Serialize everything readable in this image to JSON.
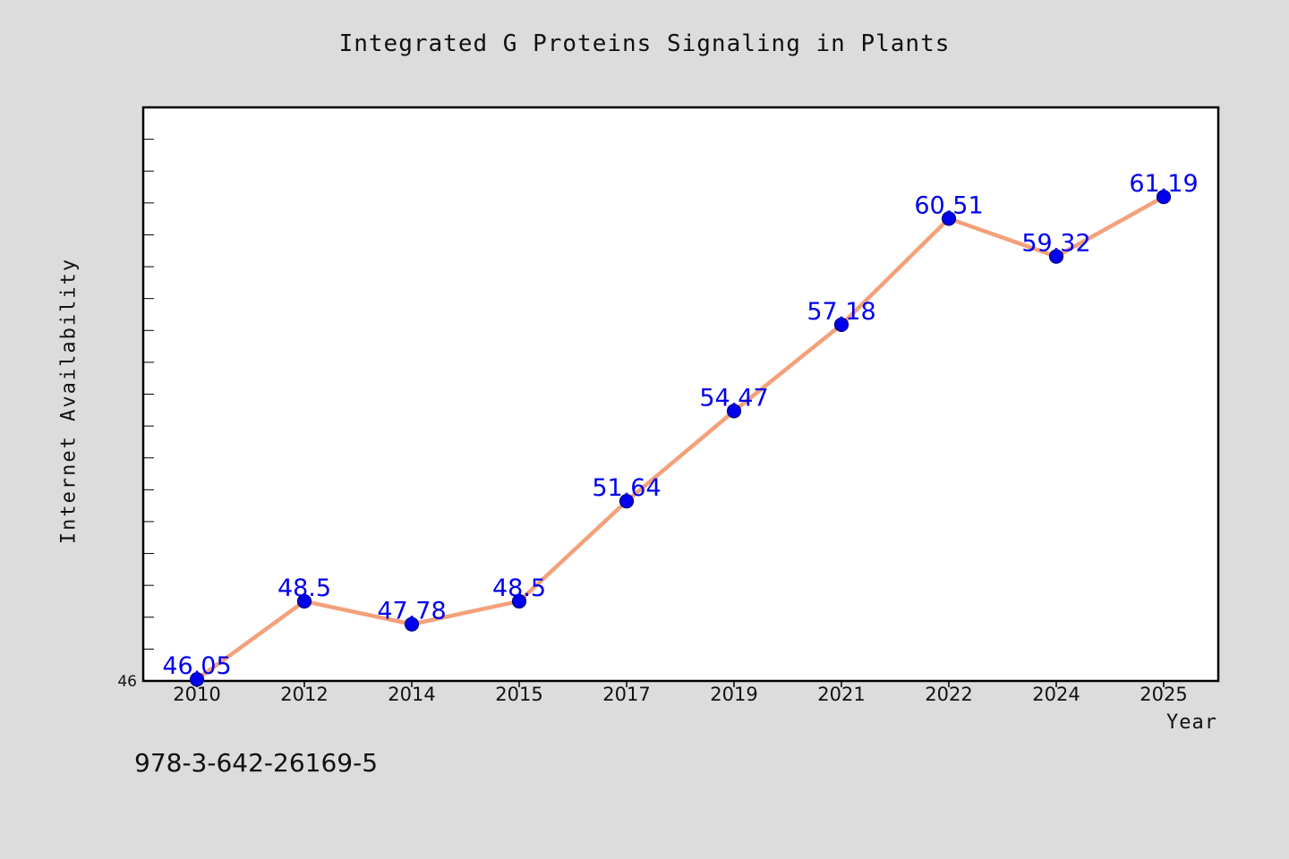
{
  "chart_data": {
    "type": "line",
    "title": "Integrated G Proteins Signaling in Plants",
    "xlabel": "Year",
    "ylabel": "Internet Availability",
    "categories": [
      "2010",
      "2012",
      "2014",
      "2015",
      "2017",
      "2019",
      "2021",
      "2022",
      "2024",
      "2025"
    ],
    "values": [
      46.05,
      48.5,
      47.78,
      48.5,
      51.64,
      54.47,
      57.18,
      60.51,
      59.32,
      61.19
    ],
    "data_labels": [
      "46.05",
      "48.5",
      "47.78",
      "48.5",
      "51.64",
      "54.47",
      "57.18",
      "60.51",
      "59.32",
      "61.19"
    ],
    "ylim": [
      46,
      64
    ],
    "y_tick_labels": [
      "46"
    ],
    "y_minor_tick_step": 1,
    "grid": false,
    "legend": "none",
    "colors": {
      "line": "#f4a07a",
      "marker": "#0000ee",
      "marker_edge": "#000080",
      "data_label": "#0000ee",
      "plot_background": "#ffffff",
      "figure_background": "#dcdcdc"
    }
  },
  "footnote": "978-3-642-26169-5"
}
